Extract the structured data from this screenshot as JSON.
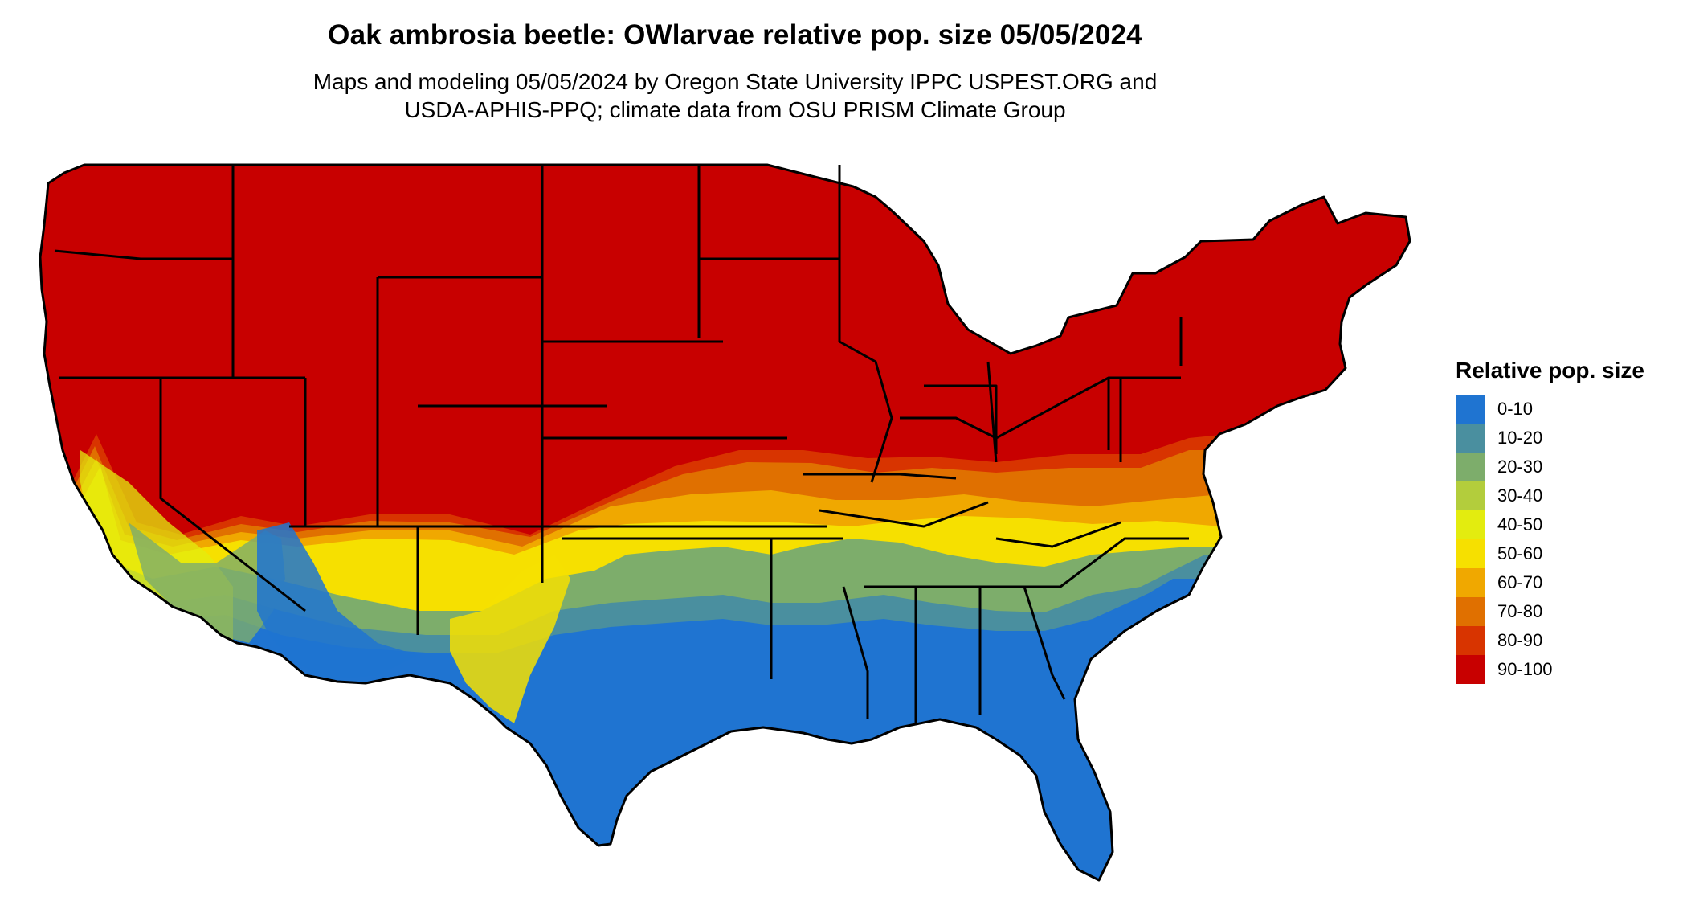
{
  "title": "Oak ambrosia beetle: OWlarvae relative pop. size 05/05/2024",
  "subtitle_line1": "Maps and modeling 05/05/2024 by Oregon State University IPPC USPEST.ORG and",
  "subtitle_line2": "USDA-APHIS-PPQ; climate data from OSU PRISM Climate Group",
  "legend": {
    "title": "Relative pop. size",
    "items": [
      {
        "label": "0-10",
        "color": "#1f74d1"
      },
      {
        "label": "10-20",
        "color": "#4a8f9f"
      },
      {
        "label": "20-30",
        "color": "#7dad6b"
      },
      {
        "label": "30-40",
        "color": "#b3cd3c"
      },
      {
        "label": "40-50",
        "color": "#e3ec0f"
      },
      {
        "label": "50-60",
        "color": "#f6e000"
      },
      {
        "label": "60-70",
        "color": "#f0a800"
      },
      {
        "label": "70-80",
        "color": "#e07000"
      },
      {
        "label": "80-90",
        "color": "#d83400"
      },
      {
        "label": "90-100",
        "color": "#c80000"
      }
    ]
  }
}
